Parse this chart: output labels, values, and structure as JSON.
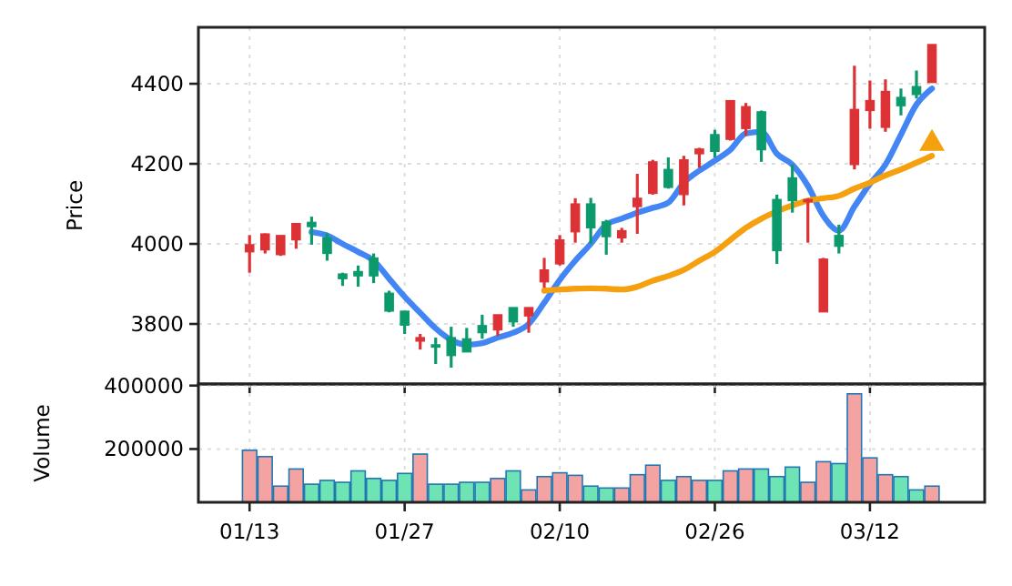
{
  "chart_data": [
    {
      "type": "candlestick",
      "ylabel": "Price",
      "grid": true,
      "tick_labels": "y",
      "ylim": [
        3650,
        4541
      ],
      "yticks": [
        3800,
        4000,
        4200,
        4400
      ],
      "categories": [
        null,
        null,
        null,
        null,
        null,
        null,
        null,
        null,
        null,
        null,
        null,
        null,
        null,
        null,
        null,
        null,
        null,
        null,
        null,
        null,
        null,
        null,
        null,
        null,
        null,
        null,
        null,
        null,
        null,
        null,
        null,
        null,
        null,
        null,
        null,
        null,
        null,
        null,
        null,
        null,
        null,
        null,
        null,
        null,
        null
      ],
      "ohlc": [
        [
          3980,
          4022,
          3928,
          3998
        ],
        [
          3985,
          4026,
          3976,
          4025
        ],
        [
          3973,
          4021,
          3970,
          4021
        ],
        [
          4010,
          4051,
          3988,
          4051
        ],
        [
          4054,
          4068,
          3998,
          4043
        ],
        [
          4015,
          4026,
          3958,
          3976
        ],
        [
          3925,
          3928,
          3895,
          3913
        ],
        [
          3931,
          3946,
          3893,
          3920
        ],
        [
          3965,
          3976,
          3902,
          3920
        ],
        [
          3877,
          3883,
          3829,
          3832
        ],
        [
          3832,
          3832,
          3775,
          3797
        ],
        [
          3757,
          3775,
          3736,
          3766
        ],
        [
          3748,
          3766,
          3700,
          3742
        ],
        [
          3766,
          3793,
          3691,
          3721
        ],
        [
          3763,
          3790,
          3730,
          3730
        ],
        [
          3796,
          3823,
          3763,
          3778
        ],
        [
          3785,
          3823,
          3770,
          3823
        ],
        [
          3841,
          3841,
          3793,
          3805
        ],
        [
          3820,
          3841,
          3778,
          3841
        ],
        [
          3905,
          3965,
          3890,
          3935
        ],
        [
          3950,
          4022,
          3946,
          4010
        ],
        [
          4030,
          4114,
          4003,
          4100
        ],
        [
          4100,
          4115,
          4000,
          4040
        ],
        [
          4055,
          4060,
          3973,
          4018
        ],
        [
          4015,
          4040,
          4003,
          4033
        ],
        [
          4093,
          4175,
          4025,
          4114
        ],
        [
          4126,
          4210,
          4123,
          4205
        ],
        [
          4186,
          4216,
          4138,
          4141
        ],
        [
          4123,
          4220,
          4096,
          4210
        ],
        [
          4225,
          4240,
          4190,
          4237
        ],
        [
          4273,
          4285,
          4216,
          4231
        ],
        [
          4261,
          4358,
          4258,
          4358
        ],
        [
          4288,
          4352,
          4270,
          4343
        ],
        [
          4330,
          4333,
          4205,
          4235
        ],
        [
          4111,
          4123,
          3950,
          3983
        ],
        [
          4165,
          4198,
          4078,
          4108
        ],
        [
          4105,
          4114,
          4003,
          4111
        ],
        [
          3830,
          3965,
          3830,
          3962
        ],
        [
          4021,
          4048,
          3976,
          3994
        ],
        [
          4198,
          4445,
          4186,
          4336
        ],
        [
          4333,
          4408,
          4288,
          4358
        ],
        [
          4291,
          4411,
          4280,
          4381
        ],
        [
          4366,
          4388,
          4321,
          4345
        ],
        [
          4393,
          4433,
          4363,
          4373
        ],
        [
          4403,
          4498,
          4403,
          4498
        ]
      ],
      "colors": [
        "#dc3236",
        "#dc3236",
        "#dc3236",
        "#dc3236",
        "#0c9a6c",
        "#0c9a6c",
        "#0c9a6c",
        "#0c9a6c",
        "#0c9a6c",
        "#0c9a6c",
        "#0c9a6c",
        "#dc3236",
        "#0c9a6c",
        "#0c9a6c",
        "#0c9a6c",
        "#0c9a6c",
        "#dc3236",
        "#0c9a6c",
        "#dc3236",
        "#dc3236",
        "#dc3236",
        "#dc3236",
        "#0c9a6c",
        "#0c9a6c",
        "#dc3236",
        "#dc3236",
        "#dc3236",
        "#0c9a6c",
        "#dc3236",
        "#dc3236",
        "#0c9a6c",
        "#dc3236",
        "#dc3236",
        "#0c9a6c",
        "#0c9a6c",
        "#0c9a6c",
        "#dc3236",
        "#dc3236",
        "#0c9a6c",
        "#dc3236",
        "#dc3236",
        "#dc3236",
        "#0c9a6c",
        "#0c9a6c",
        "#dc3236"
      ],
      "series": [
        {
          "type": "line",
          "color": "#4285f4",
          "values": [
            null,
            null,
            null,
            null,
            4030,
            4021,
            4000,
            3980,
            3958,
            3913,
            3868,
            3828,
            3789,
            3760,
            3748,
            3752,
            3766,
            3778,
            3800,
            3853,
            3910,
            3958,
            4000,
            4048,
            4063,
            4078,
            4090,
            4103,
            4153,
            4183,
            4208,
            4235,
            4276,
            4280,
            4225,
            4198,
            4145,
            4070,
            4033,
            4093,
            4150,
            4198,
            4273,
            4348,
            4388
          ]
        },
        {
          "type": "line",
          "color": "#f5a00f",
          "values": [
            null,
            null,
            null,
            null,
            null,
            null,
            null,
            null,
            null,
            null,
            null,
            null,
            null,
            null,
            null,
            null,
            null,
            null,
            null,
            3883,
            3886,
            3888,
            3889,
            3888,
            3886,
            3893,
            3908,
            3920,
            3935,
            3958,
            3980,
            4010,
            4040,
            4063,
            4081,
            4096,
            4108,
            4114,
            4120,
            4138,
            4153,
            4171,
            4186,
            4203,
            4220
          ]
        },
        {
          "type": "scatter",
          "marker": "triangle",
          "color": "#f5a00f",
          "values": [
            null,
            null,
            null,
            null,
            null,
            null,
            null,
            null,
            null,
            null,
            null,
            null,
            null,
            null,
            null,
            null,
            null,
            null,
            null,
            null,
            null,
            null,
            null,
            null,
            null,
            null,
            null,
            null,
            null,
            null,
            null,
            null,
            null,
            null,
            null,
            null,
            null,
            null,
            null,
            null,
            null,
            null,
            null,
            null,
            4255
          ]
        }
      ]
    },
    {
      "type": "bar",
      "ylabel": "Volume",
      "grid": true,
      "ylim": [
        32000,
        405000
      ],
      "yticks": [
        200000,
        400000
      ],
      "categories": [
        "01/13",
        null,
        null,
        null,
        null,
        null,
        null,
        null,
        null,
        null,
        "01/27",
        null,
        null,
        null,
        null,
        null,
        null,
        null,
        null,
        null,
        "02/10",
        null,
        null,
        null,
        null,
        null,
        null,
        null,
        null,
        null,
        "02/26",
        null,
        null,
        null,
        null,
        null,
        null,
        null,
        null,
        null,
        "03/12",
        null,
        null,
        null,
        null
      ],
      "values": [
        196000,
        176000,
        83000,
        137000,
        89000,
        101000,
        95000,
        131000,
        107000,
        101000,
        123000,
        184000,
        89000,
        89000,
        95000,
        95000,
        107000,
        131000,
        71000,
        113000,
        125000,
        117000,
        83000,
        77000,
        77000,
        119000,
        149000,
        101000,
        113000,
        101000,
        101000,
        131000,
        137000,
        137000,
        113000,
        143000,
        95000,
        160000,
        154000,
        374000,
        172000,
        119000,
        113000,
        71000,
        83000
      ],
      "colors": [
        "#f4a3a3",
        "#f4a3a3",
        "#f4a3a3",
        "#f4a3a3",
        "#6ee3b4",
        "#6ee3b4",
        "#6ee3b4",
        "#6ee3b4",
        "#6ee3b4",
        "#6ee3b4",
        "#6ee3b4",
        "#f4a3a3",
        "#6ee3b4",
        "#6ee3b4",
        "#6ee3b4",
        "#6ee3b4",
        "#f4a3a3",
        "#6ee3b4",
        "#f4a3a3",
        "#f4a3a3",
        "#f4a3a3",
        "#f4a3a3",
        "#6ee3b4",
        "#6ee3b4",
        "#f4a3a3",
        "#f4a3a3",
        "#f4a3a3",
        "#6ee3b4",
        "#f4a3a3",
        "#f4a3a3",
        "#6ee3b4",
        "#f4a3a3",
        "#f4a3a3",
        "#6ee3b4",
        "#6ee3b4",
        "#6ee3b4",
        "#f4a3a3",
        "#f4a3a3",
        "#6ee3b4",
        "#f4a3a3",
        "#f4a3a3",
        "#f4a3a3",
        "#6ee3b4",
        "#6ee3b4",
        "#f4a3a3"
      ]
    }
  ]
}
